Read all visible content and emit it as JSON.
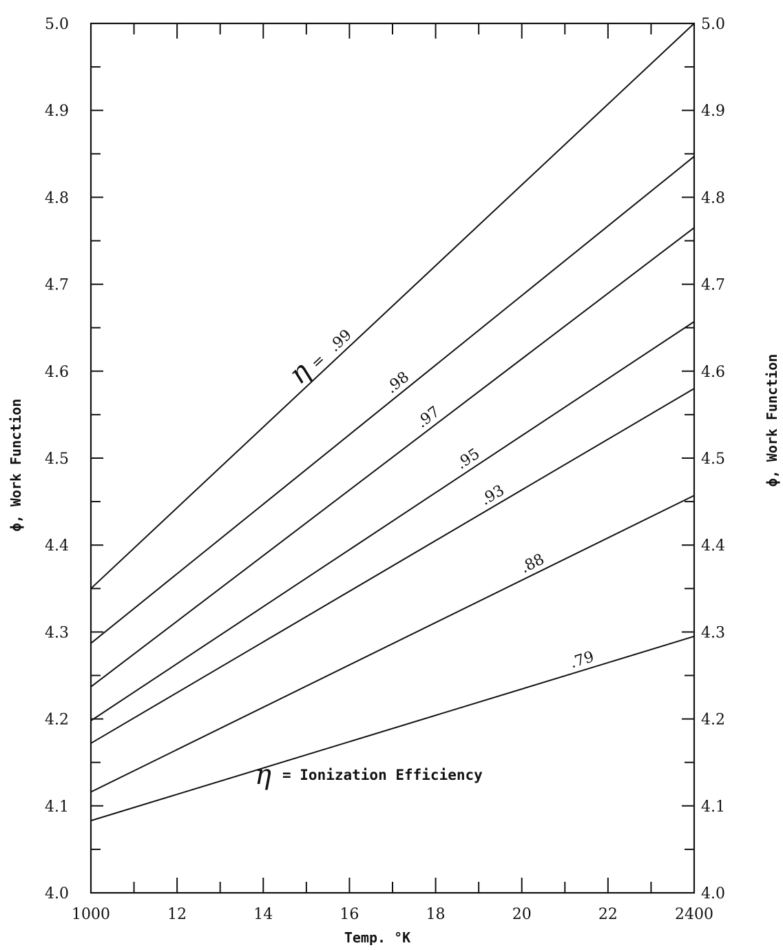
{
  "chart_data": {
    "type": "line",
    "xlabel": "Temp. °K",
    "ylabel_left": "ϕ, Work Function",
    "ylabel_right": "ϕ, Work Function",
    "xlim": [
      1000,
      2400
    ],
    "ylim": [
      4.0,
      5.0
    ],
    "x_ticks": [
      1000,
      1200,
      1400,
      1600,
      1800,
      2000,
      2200,
      2400
    ],
    "x_tick_labels": [
      "1000",
      "12",
      "14",
      "16",
      "18",
      "20",
      "22",
      "2400"
    ],
    "y_ticks": [
      4.0,
      4.1,
      4.2,
      4.3,
      4.4,
      4.5,
      4.6,
      4.7,
      4.8,
      4.9,
      5.0
    ],
    "y_tick_labels_left": [
      "4.0",
      "4.1",
      "4.2",
      "4.3",
      "4.4",
      "4.5",
      "4.6",
      "4.7",
      "4.8",
      "4.9",
      "5.0"
    ],
    "y_tick_labels_right": [
      "4.0",
      "4.1",
      "4.2",
      "4.3",
      "4.4",
      "4.5",
      "4.6",
      "4.7",
      "4.8",
      "4.9",
      "5.0"
    ],
    "annotation": "= Ionization Efficiency",
    "eta_symbol": "η",
    "eta_equals": "=",
    "series": [
      {
        "name": ".99",
        "x": [
          1000,
          2400
        ],
        "y": [
          4.35,
          5.0
        ],
        "label_at": 1970,
        "label_x": 1575
      },
      {
        "name": ".98",
        "x": [
          1000,
          2400
        ],
        "y": [
          4.287,
          4.847
        ],
        "label_x": 1705
      },
      {
        "name": ".97",
        "x": [
          1000,
          2400
        ],
        "y": [
          4.237,
          4.765
        ],
        "label_x": 1775
      },
      {
        "name": ".95",
        "x": [
          1000,
          2400
        ],
        "y": [
          4.198,
          4.657
        ],
        "label_x": 1865
      },
      {
        "name": ".93",
        "x": [
          1000,
          2400
        ],
        "y": [
          4.172,
          4.58
        ],
        "label_x": 1920
      },
      {
        "name": ".88",
        "x": [
          1000,
          2400
        ],
        "y": [
          4.116,
          4.457
        ],
        "label_x": 2010
      },
      {
        "name": ".79",
        "x": [
          1000,
          2400
        ],
        "y": [
          4.083,
          4.295
        ],
        "label_x": 2120
      }
    ]
  }
}
